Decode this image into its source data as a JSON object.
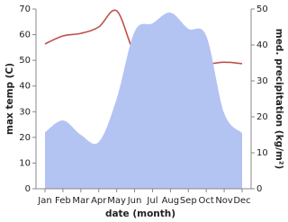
{
  "chart_data": {
    "type": "line-area",
    "x_label": "date (month)",
    "y_label": "max temp (C)",
    "y2_label": "med. precipitation (kg/m²)",
    "categories": [
      "Jan",
      "Feb",
      "Mar",
      "Apr",
      "May",
      "Jun",
      "Jul",
      "Aug",
      "Sep",
      "Oct",
      "Nov",
      "Dec"
    ],
    "ylim": [
      0,
      70
    ],
    "yticks": [
      0,
      10,
      20,
      30,
      40,
      50,
      60,
      70
    ],
    "y2lim": [
      0,
      50
    ],
    "y2ticks": [
      0,
      10,
      20,
      30,
      40,
      50
    ],
    "series": [
      {
        "name": "max temp",
        "type": "line",
        "color": "#c0504d",
        "values": [
          56.4,
          59.5,
          60.5,
          63,
          69.3,
          53.2,
          53,
          49.7,
          50.8,
          48.7,
          49.3,
          48.7
        ]
      },
      {
        "name": "med. precipitation",
        "type": "area",
        "axis": "y2",
        "color": "#b3c3f2",
        "values": [
          15.7,
          19,
          15,
          13,
          25,
          43.7,
          46,
          49,
          44.5,
          42.5,
          21,
          15.5
        ]
      }
    ]
  }
}
